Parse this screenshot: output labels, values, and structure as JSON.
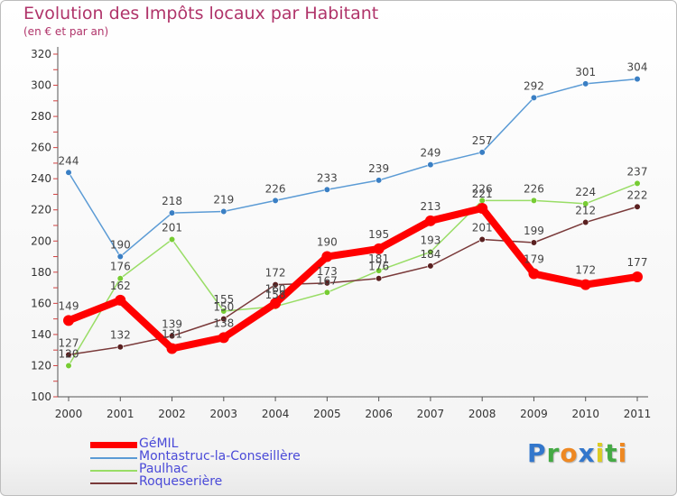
{
  "chart_data": {
    "type": "line",
    "title": "Evolution des Impôts locaux par Habitant",
    "subtitle": "(en € et par an)",
    "xlabel": "",
    "ylabel": "",
    "ylim": [
      100,
      320
    ],
    "yticks": [
      100,
      120,
      140,
      160,
      180,
      200,
      220,
      240,
      260,
      280,
      300,
      320
    ],
    "x": [
      "2000",
      "2001",
      "2002",
      "2003",
      "2004",
      "2005",
      "2006",
      "2007",
      "2008",
      "2009",
      "2010",
      "2011"
    ],
    "grid": false,
    "legend_position": "bottom-left",
    "series": [
      {
        "name": "Montastruc-la-Conseillère",
        "color": "#5b9bd5",
        "marker": "#3a7fc4",
        "values": [
          244,
          190,
          218,
          219,
          226,
          233,
          239,
          249,
          257,
          292,
          301,
          304
        ],
        "labels": [
          "244",
          "190",
          "218",
          "219",
          "226",
          "233",
          "239",
          "249",
          "257",
          "292",
          "301",
          "304"
        ]
      },
      {
        "name": "Paulhac",
        "color": "#99dd66",
        "marker": "#77cc33",
        "values": [
          120,
          176,
          201,
          155,
          158,
          167,
          181,
          193,
          226,
          226,
          224,
          237
        ],
        "labels": [
          "120",
          "176",
          "201",
          "155",
          "158",
          "167",
          "181",
          "193",
          "226",
          "226",
          "224",
          "237"
        ]
      },
      {
        "name": "Roqueserière",
        "color": "#7a3a3a",
        "marker": "#5a2020",
        "values": [
          127,
          132,
          139,
          150,
          172,
          173,
          176,
          184,
          201,
          199,
          212,
          222
        ],
        "labels": [
          "127",
          "132",
          "139",
          "150",
          "172",
          "173",
          "176",
          "184",
          "201",
          "199",
          "212",
          "222"
        ]
      },
      {
        "name": "GéMIL",
        "color": "#ff0000",
        "marker": "#ff0000",
        "thick": true,
        "values": [
          149,
          162,
          131,
          138,
          160,
          190,
          195,
          213,
          221,
          179,
          172,
          177
        ],
        "labels": [
          "149",
          "162",
          "131",
          "138",
          "160",
          "190",
          "195",
          "213",
          "221",
          "179",
          "172",
          "177"
        ]
      }
    ]
  },
  "legend": {
    "items": [
      {
        "label": "GéMIL",
        "color": "#ff0000",
        "thick": true
      },
      {
        "label": "Montastruc-la-Conseillère",
        "color": "#5b9bd5"
      },
      {
        "label": "Paulhac",
        "color": "#99dd66"
      },
      {
        "label": "Roqueserière",
        "color": "#7a3a3a"
      }
    ]
  },
  "brand": {
    "letters": [
      "P",
      "r",
      "o",
      "x",
      "i",
      "t",
      "i"
    ],
    "colors": [
      "#3377cc",
      "#44aa44",
      "#ee8822",
      "#3377cc",
      "#ddcc22",
      "#44aa44",
      "#ee8822"
    ]
  }
}
